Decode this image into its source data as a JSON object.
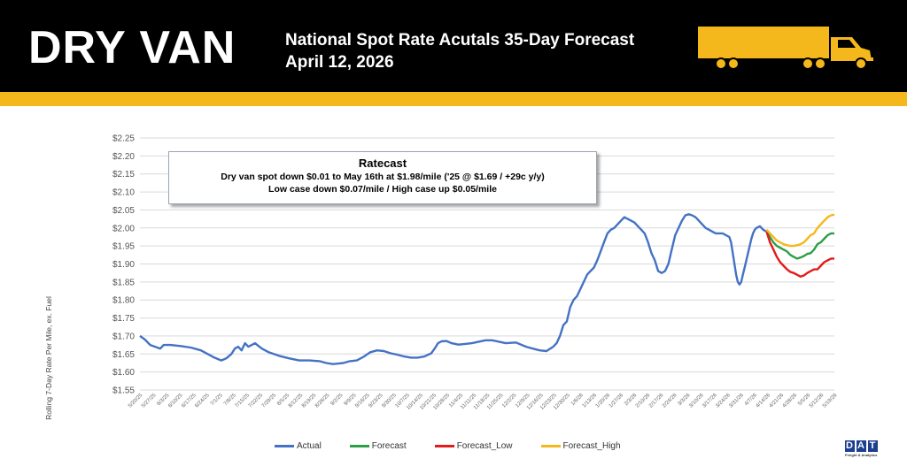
{
  "header": {
    "brand": "DRY VAN",
    "title": "National Spot Rate Acutals 35-Day Forecast",
    "subtitle": "April 12, 2026"
  },
  "ratecast": {
    "title": "Ratecast",
    "line1": "Dry van spot down $0.01 to May 16th at $1.98/mile ('25 @ $1.69 / +29c y/y)",
    "line2": "Low case down $0.07/mile / High case up $0.05/mile"
  },
  "logo": {
    "letters": [
      "D",
      "A",
      "T"
    ],
    "tagline": "Freight & Analytics"
  },
  "colors": {
    "header_bg": "#000000",
    "accent": "#f5b81c",
    "actual": "#4472c4",
    "forecast": "#2e9e48",
    "forecast_low": "#e31b1b",
    "forecast_high": "#f5b81c"
  },
  "icons": [
    "truck-icon"
  ],
  "chart_data": {
    "type": "line",
    "ylabel": "Rolling 7-Day Rate Per Mile, ex. Fuel",
    "y_ticks": [
      "$2.25",
      "$2.20",
      "$2.15",
      "$2.10",
      "$2.05",
      "$2.00",
      "$1.95",
      "$1.90",
      "$1.85",
      "$1.80",
      "$1.75",
      "$1.70",
      "$1.65",
      "$1.60",
      "$1.55"
    ],
    "ylim": [
      1.55,
      2.25
    ],
    "grid": "horizontal",
    "x_ticks": [
      "5/20/25",
      "5/27/25",
      "6/3/25",
      "6/10/25",
      "6/17/25",
      "6/24/25",
      "7/1/25",
      "7/8/25",
      "7/15/25",
      "7/22/25",
      "7/29/25",
      "8/5/25",
      "8/12/25",
      "8/19/25",
      "8/26/25",
      "9/2/25",
      "9/9/25",
      "9/16/25",
      "9/23/25",
      "9/30/25",
      "10/7/25",
      "10/14/25",
      "10/21/25",
      "10/28/25",
      "11/4/25",
      "11/11/25",
      "11/18/25",
      "11/25/25",
      "12/2/25",
      "12/9/25",
      "12/16/25",
      "12/23/25",
      "12/30/25",
      "1/6/26",
      "1/13/26",
      "1/20/26",
      "1/27/26",
      "2/3/26",
      "2/10/26",
      "2/17/26",
      "2/24/26",
      "3/3/26",
      "3/10/26",
      "3/17/26",
      "3/24/26",
      "3/31/26",
      "4/7/26",
      "4/14/26",
      "4/21/26",
      "4/28/26",
      "5/5/26",
      "5/12/26",
      "5/19/26"
    ],
    "xlim": [
      0,
      364
    ],
    "legend_position": "bottom",
    "series": [
      {
        "name": "Actual",
        "points": [
          [
            0,
            1.7
          ],
          [
            3,
            1.69
          ],
          [
            6,
            1.675
          ],
          [
            9,
            1.67
          ],
          [
            12,
            1.665
          ],
          [
            14,
            1.675
          ],
          [
            18,
            1.675
          ],
          [
            24,
            1.672
          ],
          [
            30,
            1.668
          ],
          [
            36,
            1.66
          ],
          [
            40,
            1.65
          ],
          [
            44,
            1.64
          ],
          [
            48,
            1.632
          ],
          [
            51,
            1.638
          ],
          [
            54,
            1.65
          ],
          [
            56,
            1.665
          ],
          [
            58,
            1.67
          ],
          [
            60,
            1.66
          ],
          [
            62,
            1.68
          ],
          [
            64,
            1.67
          ],
          [
            66,
            1.675
          ],
          [
            68,
            1.68
          ],
          [
            70,
            1.672
          ],
          [
            72,
            1.665
          ],
          [
            76,
            1.655
          ],
          [
            82,
            1.645
          ],
          [
            88,
            1.638
          ],
          [
            94,
            1.632
          ],
          [
            100,
            1.632
          ],
          [
            106,
            1.63
          ],
          [
            110,
            1.625
          ],
          [
            114,
            1.622
          ],
          [
            120,
            1.625
          ],
          [
            124,
            1.63
          ],
          [
            128,
            1.632
          ],
          [
            132,
            1.642
          ],
          [
            136,
            1.655
          ],
          [
            140,
            1.66
          ],
          [
            144,
            1.658
          ],
          [
            148,
            1.652
          ],
          [
            152,
            1.648
          ],
          [
            156,
            1.643
          ],
          [
            160,
            1.64
          ],
          [
            164,
            1.64
          ],
          [
            168,
            1.643
          ],
          [
            172,
            1.652
          ],
          [
            174,
            1.665
          ],
          [
            176,
            1.68
          ],
          [
            178,
            1.685
          ],
          [
            181,
            1.686
          ],
          [
            184,
            1.68
          ],
          [
            188,
            1.676
          ],
          [
            192,
            1.678
          ],
          [
            196,
            1.68
          ],
          [
            200,
            1.684
          ],
          [
            204,
            1.688
          ],
          [
            208,
            1.688
          ],
          [
            212,
            1.684
          ],
          [
            216,
            1.68
          ],
          [
            222,
            1.682
          ],
          [
            228,
            1.67
          ],
          [
            232,
            1.665
          ],
          [
            236,
            1.66
          ],
          [
            240,
            1.658
          ],
          [
            244,
            1.67
          ],
          [
            246,
            1.68
          ],
          [
            248,
            1.7
          ],
          [
            250,
            1.73
          ],
          [
            252,
            1.74
          ],
          [
            254,
            1.78
          ],
          [
            256,
            1.8
          ],
          [
            258,
            1.81
          ],
          [
            260,
            1.83
          ],
          [
            262,
            1.85
          ],
          [
            264,
            1.87
          ],
          [
            266,
            1.88
          ],
          [
            268,
            1.89
          ],
          [
            270,
            1.91
          ],
          [
            272,
            1.935
          ],
          [
            274,
            1.96
          ],
          [
            276,
            1.985
          ],
          [
            278,
            1.995
          ],
          [
            280,
            2.0
          ],
          [
            282,
            2.01
          ],
          [
            284,
            2.02
          ],
          [
            286,
            2.03
          ],
          [
            288,
            2.025
          ],
          [
            290,
            2.02
          ],
          [
            292,
            2.015
          ],
          [
            294,
            2.005
          ],
          [
            296,
            1.995
          ],
          [
            298,
            1.985
          ],
          [
            300,
            1.96
          ],
          [
            302,
            1.93
          ],
          [
            304,
            1.91
          ],
          [
            306,
            1.88
          ],
          [
            308,
            1.875
          ],
          [
            310,
            1.88
          ],
          [
            312,
            1.9
          ],
          [
            314,
            1.94
          ],
          [
            316,
            1.98
          ],
          [
            318,
            2.0
          ],
          [
            320,
            2.02
          ],
          [
            322,
            2.035
          ],
          [
            324,
            2.038
          ],
          [
            326,
            2.035
          ],
          [
            328,
            2.03
          ],
          [
            330,
            2.02
          ],
          [
            332,
            2.01
          ],
          [
            334,
            2.0
          ],
          [
            336,
            1.995
          ],
          [
            338,
            1.99
          ],
          [
            340,
            1.985
          ],
          [
            342,
            1.985
          ],
          [
            344,
            1.985
          ],
          [
            346,
            1.98
          ],
          [
            348,
            1.975
          ],
          [
            349,
            1.96
          ],
          [
            350,
            1.93
          ],
          [
            351,
            1.9
          ],
          [
            352,
            1.87
          ],
          [
            353,
            1.85
          ],
          [
            354,
            1.843
          ],
          [
            355,
            1.85
          ],
          [
            356,
            1.87
          ],
          [
            357,
            1.89
          ],
          [
            358,
            1.91
          ],
          [
            359,
            1.93
          ],
          [
            360,
            1.95
          ],
          [
            361,
            1.97
          ],
          [
            362,
            1.985
          ],
          [
            363,
            1.995
          ],
          [
            364,
            2.0
          ],
          [
            366,
            2.005
          ],
          [
            368,
            1.995
          ],
          [
            370,
            1.99
          ]
        ]
      },
      {
        "name": "Forecast",
        "points": [
          [
            370,
            1.99
          ],
          [
            372,
            1.975
          ],
          [
            374,
            1.96
          ],
          [
            376,
            1.95
          ],
          [
            378,
            1.945
          ],
          [
            380,
            1.94
          ],
          [
            382,
            1.935
          ],
          [
            384,
            1.925
          ],
          [
            386,
            1.92
          ],
          [
            388,
            1.915
          ],
          [
            390,
            1.918
          ],
          [
            392,
            1.922
          ],
          [
            394,
            1.928
          ],
          [
            396,
            1.93
          ],
          [
            398,
            1.94
          ],
          [
            400,
            1.955
          ],
          [
            402,
            1.96
          ],
          [
            404,
            1.97
          ],
          [
            406,
            1.98
          ],
          [
            408,
            1.985
          ],
          [
            410,
            1.985
          ]
        ]
      },
      {
        "name": "Forecast_Low",
        "points": [
          [
            370,
            1.99
          ],
          [
            372,
            1.96
          ],
          [
            374,
            1.94
          ],
          [
            376,
            1.92
          ],
          [
            378,
            1.905
          ],
          [
            380,
            1.895
          ],
          [
            382,
            1.885
          ],
          [
            384,
            1.878
          ],
          [
            386,
            1.875
          ],
          [
            388,
            1.87
          ],
          [
            390,
            1.865
          ],
          [
            392,
            1.868
          ],
          [
            394,
            1.875
          ],
          [
            396,
            1.88
          ],
          [
            398,
            1.885
          ],
          [
            400,
            1.885
          ],
          [
            402,
            1.895
          ],
          [
            404,
            1.905
          ],
          [
            406,
            1.91
          ],
          [
            408,
            1.915
          ],
          [
            410,
            1.915
          ]
        ]
      },
      {
        "name": "Forecast_High",
        "points": [
          [
            370,
            1.995
          ],
          [
            372,
            1.985
          ],
          [
            374,
            1.975
          ],
          [
            376,
            1.965
          ],
          [
            378,
            1.96
          ],
          [
            380,
            1.955
          ],
          [
            382,
            1.952
          ],
          [
            384,
            1.95
          ],
          [
            386,
            1.95
          ],
          [
            388,
            1.952
          ],
          [
            390,
            1.955
          ],
          [
            392,
            1.96
          ],
          [
            394,
            1.97
          ],
          [
            396,
            1.98
          ],
          [
            398,
            1.985
          ],
          [
            400,
            2.0
          ],
          [
            402,
            2.01
          ],
          [
            404,
            2.02
          ],
          [
            406,
            2.03
          ],
          [
            408,
            2.035
          ],
          [
            410,
            2.037
          ]
        ]
      }
    ]
  }
}
